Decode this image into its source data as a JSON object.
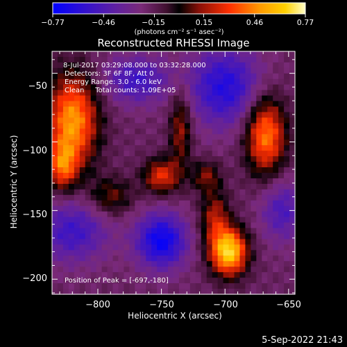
{
  "chart_data": {
    "type": "heatmap",
    "title": "Reconstructed RHESSI Image",
    "xlabel": "Heliocentric X (arcsec)",
    "ylabel": "Heliocentric Y (arcsec)",
    "xlim": [
      -836,
      -645
    ],
    "ylim": [
      -211,
      -34
    ],
    "xticks": [
      -800,
      -750,
      -700,
      -650
    ],
    "yticks": [
      -50,
      -100,
      -150,
      -200
    ],
    "xtick_labels": [
      "−800",
      "−750",
      "−700",
      "−650"
    ],
    "ytick_labels": [
      "−50",
      "−100",
      "−150",
      "−200"
    ],
    "colorbar": {
      "min": -0.77,
      "max": 0.77,
      "ticks": [
        -0.77,
        -0.46,
        -0.15,
        0.15,
        0.46,
        0.77
      ],
      "tick_labels": [
        "−0.77",
        "−0.46",
        "−0.15",
        "0.15",
        "0.46",
        "0.77"
      ],
      "unit_label": "(photons cm⁻² s⁻¹ asec⁻²)",
      "colormap": [
        "#0000ff",
        "#6020a0",
        "#7a2a78",
        "#5a102a",
        "#000000",
        "#8a1008",
        "#ff3000",
        "#ff9a00",
        "#ffd000",
        "#ffffc8"
      ]
    },
    "annotations": [
      "8-Jul-2017 03:29:08.000 to 03:32:28.000",
      "Detectors: 3F 6F 8F, Att 0",
      "Energy Range: 3.0 - 6.0 keV",
      "Clean     Total counts: 1.09E+05"
    ],
    "peak_label": "Position of Peak = [-697,-180]",
    "peak": {
      "x": -697,
      "y": -180,
      "value": 0.77
    },
    "sources": [
      {
        "x": -820,
        "y": -85,
        "sx": 14,
        "sy": 24,
        "amp": 0.68
      },
      {
        "x": -828,
        "y": -118,
        "sx": 8,
        "sy": 12,
        "amp": 0.45
      },
      {
        "x": -697,
        "y": -180,
        "sx": 10,
        "sy": 12,
        "amp": 0.85
      },
      {
        "x": -668,
        "y": -95,
        "sx": 11,
        "sy": 20,
        "amp": 0.62
      },
      {
        "x": -708,
        "y": -155,
        "sx": 8,
        "sy": 14,
        "amp": 0.35
      },
      {
        "x": -750,
        "y": -125,
        "sx": 10,
        "sy": 9,
        "amp": 0.45
      },
      {
        "x": -735,
        "y": -90,
        "sx": 6,
        "sy": 20,
        "amp": 0.34
      },
      {
        "x": -790,
        "y": -140,
        "sx": 12,
        "sy": 10,
        "amp": 0.28
      },
      {
        "x": -715,
        "y": -125,
        "sx": 8,
        "sy": 8,
        "amp": 0.28
      },
      {
        "x": -770,
        "y": -55,
        "sx": 18,
        "sy": 12,
        "amp": -0.35
      },
      {
        "x": -750,
        "y": -172,
        "sx": 14,
        "sy": 14,
        "amp": -0.55
      },
      {
        "x": -700,
        "y": -60,
        "sx": 20,
        "sy": 20,
        "amp": -0.45
      },
      {
        "x": -820,
        "y": -165,
        "sx": 20,
        "sy": 16,
        "amp": -0.35
      },
      {
        "x": -655,
        "y": -150,
        "sx": 12,
        "sy": 16,
        "amp": -0.3
      }
    ]
  },
  "timestamp": "5-Sep-2022 21:43"
}
